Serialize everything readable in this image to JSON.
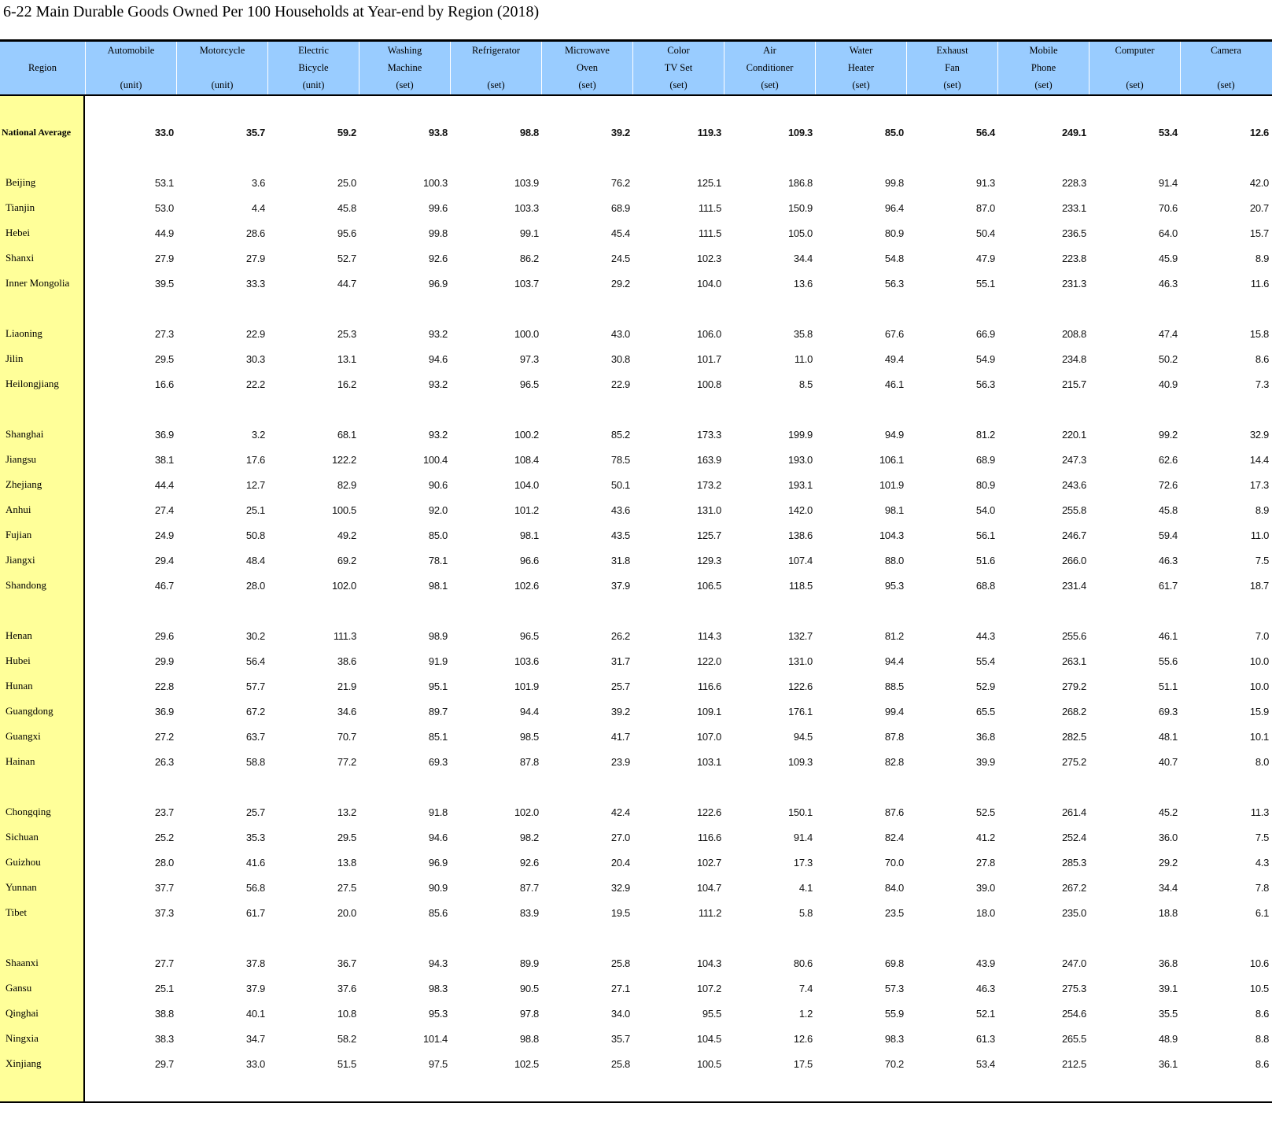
{
  "title": "6-22  Main Durable Goods Owned Per 100 Households at Year-end by Region (2018)",
  "header": {
    "region_label": "Region",
    "columns": [
      {
        "lines": [
          "Automobile",
          ""
        ],
        "unit": "(unit)"
      },
      {
        "lines": [
          "Motorcycle",
          ""
        ],
        "unit": "(unit)"
      },
      {
        "lines": [
          "Electric",
          "Bicycle"
        ],
        "unit": "(unit)"
      },
      {
        "lines": [
          "Washing",
          "Machine"
        ],
        "unit": "(set)"
      },
      {
        "lines": [
          "Refrigerator",
          ""
        ],
        "unit": "(set)"
      },
      {
        "lines": [
          "Microwave",
          "Oven"
        ],
        "unit": "(set)"
      },
      {
        "lines": [
          "Color",
          "TV Set"
        ],
        "unit": "(set)"
      },
      {
        "lines": [
          "Air",
          "Conditioner"
        ],
        "unit": "(set)"
      },
      {
        "lines": [
          "Water",
          "Heater"
        ],
        "unit": "(set)"
      },
      {
        "lines": [
          "Exhaust",
          "Fan"
        ],
        "unit": "(set)"
      },
      {
        "lines": [
          "Mobile",
          "Phone"
        ],
        "unit": "(set)"
      },
      {
        "lines": [
          "Computer",
          ""
        ],
        "unit": "(set)"
      },
      {
        "lines": [
          "Camera",
          ""
        ],
        "unit": "(set)"
      }
    ]
  },
  "colors": {
    "header_bg": "#99ccff",
    "region_bg": "#ffff99"
  },
  "national_average": {
    "region": "National Average",
    "values": [
      "33.0",
      "35.7",
      "59.2",
      "93.8",
      "98.8",
      "39.2",
      "119.3",
      "109.3",
      "85.0",
      "56.4",
      "249.1",
      "53.4",
      "12.6"
    ]
  },
  "groups": [
    [
      {
        "region": "Beijing",
        "values": [
          "53.1",
          "3.6",
          "25.0",
          "100.3",
          "103.9",
          "76.2",
          "125.1",
          "186.8",
          "99.8",
          "91.3",
          "228.3",
          "91.4",
          "42.0"
        ]
      },
      {
        "region": "Tianjin",
        "values": [
          "53.0",
          "4.4",
          "45.8",
          "99.6",
          "103.3",
          "68.9",
          "111.5",
          "150.9",
          "96.4",
          "87.0",
          "233.1",
          "70.6",
          "20.7"
        ]
      },
      {
        "region": "Hebei",
        "values": [
          "44.9",
          "28.6",
          "95.6",
          "99.8",
          "99.1",
          "45.4",
          "111.5",
          "105.0",
          "80.9",
          "50.4",
          "236.5",
          "64.0",
          "15.7"
        ]
      },
      {
        "region": "Shanxi",
        "values": [
          "27.9",
          "27.9",
          "52.7",
          "92.6",
          "86.2",
          "24.5",
          "102.3",
          "34.4",
          "54.8",
          "47.9",
          "223.8",
          "45.9",
          "8.9"
        ]
      },
      {
        "region": "Inner Mongolia",
        "values": [
          "39.5",
          "33.3",
          "44.7",
          "96.9",
          "103.7",
          "29.2",
          "104.0",
          "13.6",
          "56.3",
          "55.1",
          "231.3",
          "46.3",
          "11.6"
        ]
      }
    ],
    [
      {
        "region": "Liaoning",
        "values": [
          "27.3",
          "22.9",
          "25.3",
          "93.2",
          "100.0",
          "43.0",
          "106.0",
          "35.8",
          "67.6",
          "66.9",
          "208.8",
          "47.4",
          "15.8"
        ]
      },
      {
        "region": "Jilin",
        "values": [
          "29.5",
          "30.3",
          "13.1",
          "94.6",
          "97.3",
          "30.8",
          "101.7",
          "11.0",
          "49.4",
          "54.9",
          "234.8",
          "50.2",
          "8.6"
        ]
      },
      {
        "region": "Heilongjiang",
        "values": [
          "16.6",
          "22.2",
          "16.2",
          "93.2",
          "96.5",
          "22.9",
          "100.8",
          "8.5",
          "46.1",
          "56.3",
          "215.7",
          "40.9",
          "7.3"
        ]
      }
    ],
    [
      {
        "region": "Shanghai",
        "values": [
          "36.9",
          "3.2",
          "68.1",
          "93.2",
          "100.2",
          "85.2",
          "173.3",
          "199.9",
          "94.9",
          "81.2",
          "220.1",
          "99.2",
          "32.9"
        ]
      },
      {
        "region": "Jiangsu",
        "values": [
          "38.1",
          "17.6",
          "122.2",
          "100.4",
          "108.4",
          "78.5",
          "163.9",
          "193.0",
          "106.1",
          "68.9",
          "247.3",
          "62.6",
          "14.4"
        ]
      },
      {
        "region": "Zhejiang",
        "values": [
          "44.4",
          "12.7",
          "82.9",
          "90.6",
          "104.0",
          "50.1",
          "173.2",
          "193.1",
          "101.9",
          "80.9",
          "243.6",
          "72.6",
          "17.3"
        ]
      },
      {
        "region": "Anhui",
        "values": [
          "27.4",
          "25.1",
          "100.5",
          "92.0",
          "101.2",
          "43.6",
          "131.0",
          "142.0",
          "98.1",
          "54.0",
          "255.8",
          "45.8",
          "8.9"
        ]
      },
      {
        "region": "Fujian",
        "values": [
          "24.9",
          "50.8",
          "49.2",
          "85.0",
          "98.1",
          "43.5",
          "125.7",
          "138.6",
          "104.3",
          "56.1",
          "246.7",
          "59.4",
          "11.0"
        ]
      },
      {
        "region": "Jiangxi",
        "values": [
          "29.4",
          "48.4",
          "69.2",
          "78.1",
          "96.6",
          "31.8",
          "129.3",
          "107.4",
          "88.0",
          "51.6",
          "266.0",
          "46.3",
          "7.5"
        ]
      },
      {
        "region": "Shandong",
        "values": [
          "46.7",
          "28.0",
          "102.0",
          "98.1",
          "102.6",
          "37.9",
          "106.5",
          "118.5",
          "95.3",
          "68.8",
          "231.4",
          "61.7",
          "18.7"
        ]
      }
    ],
    [
      {
        "region": "Henan",
        "values": [
          "29.6",
          "30.2",
          "111.3",
          "98.9",
          "96.5",
          "26.2",
          "114.3",
          "132.7",
          "81.2",
          "44.3",
          "255.6",
          "46.1",
          "7.0"
        ]
      },
      {
        "region": "Hubei",
        "values": [
          "29.9",
          "56.4",
          "38.6",
          "91.9",
          "103.6",
          "31.7",
          "122.0",
          "131.0",
          "94.4",
          "55.4",
          "263.1",
          "55.6",
          "10.0"
        ]
      },
      {
        "region": "Hunan",
        "values": [
          "22.8",
          "57.7",
          "21.9",
          "95.1",
          "101.9",
          "25.7",
          "116.6",
          "122.6",
          "88.5",
          "52.9",
          "279.2",
          "51.1",
          "10.0"
        ]
      },
      {
        "region": "Guangdong",
        "values": [
          "36.9",
          "67.2",
          "34.6",
          "89.7",
          "94.4",
          "39.2",
          "109.1",
          "176.1",
          "99.4",
          "65.5",
          "268.2",
          "69.3",
          "15.9"
        ]
      },
      {
        "region": "Guangxi",
        "values": [
          "27.2",
          "63.7",
          "70.7",
          "85.1",
          "98.5",
          "41.7",
          "107.0",
          "94.5",
          "87.8",
          "36.8",
          "282.5",
          "48.1",
          "10.1"
        ]
      },
      {
        "region": "Hainan",
        "values": [
          "26.3",
          "58.8",
          "77.2",
          "69.3",
          "87.8",
          "23.9",
          "103.1",
          "109.3",
          "82.8",
          "39.9",
          "275.2",
          "40.7",
          "8.0"
        ]
      }
    ],
    [
      {
        "region": "Chongqing",
        "values": [
          "23.7",
          "25.7",
          "13.2",
          "91.8",
          "102.0",
          "42.4",
          "122.6",
          "150.1",
          "87.6",
          "52.5",
          "261.4",
          "45.2",
          "11.3"
        ]
      },
      {
        "region": "Sichuan",
        "values": [
          "25.2",
          "35.3",
          "29.5",
          "94.6",
          "98.2",
          "27.0",
          "116.6",
          "91.4",
          "82.4",
          "41.2",
          "252.4",
          "36.0",
          "7.5"
        ]
      },
      {
        "region": "Guizhou",
        "values": [
          "28.0",
          "41.6",
          "13.8",
          "96.9",
          "92.6",
          "20.4",
          "102.7",
          "17.3",
          "70.0",
          "27.8",
          "285.3",
          "29.2",
          "4.3"
        ]
      },
      {
        "region": "Yunnan",
        "values": [
          "37.7",
          "56.8",
          "27.5",
          "90.9",
          "87.7",
          "32.9",
          "104.7",
          "4.1",
          "84.0",
          "39.0",
          "267.2",
          "34.4",
          "7.8"
        ]
      },
      {
        "region": "Tibet",
        "values": [
          "37.3",
          "61.7",
          "20.0",
          "85.6",
          "83.9",
          "19.5",
          "111.2",
          "5.8",
          "23.5",
          "18.0",
          "235.0",
          "18.8",
          "6.1"
        ]
      }
    ],
    [
      {
        "region": "Shaanxi",
        "values": [
          "27.7",
          "37.8",
          "36.7",
          "94.3",
          "89.9",
          "25.8",
          "104.3",
          "80.6",
          "69.8",
          "43.9",
          "247.0",
          "36.8",
          "10.6"
        ]
      },
      {
        "region": "Gansu",
        "values": [
          "25.1",
          "37.9",
          "37.6",
          "98.3",
          "90.5",
          "27.1",
          "107.2",
          "7.4",
          "57.3",
          "46.3",
          "275.3",
          "39.1",
          "10.5"
        ]
      },
      {
        "region": "Qinghai",
        "values": [
          "38.8",
          "40.1",
          "10.8",
          "95.3",
          "97.8",
          "34.0",
          "95.5",
          "1.2",
          "55.9",
          "52.1",
          "254.6",
          "35.5",
          "8.6"
        ]
      },
      {
        "region": "Ningxia",
        "values": [
          "38.3",
          "34.7",
          "58.2",
          "101.4",
          "98.8",
          "35.7",
          "104.5",
          "12.6",
          "98.3",
          "61.3",
          "265.5",
          "48.9",
          "8.8"
        ]
      },
      {
        "region": "Xinjiang",
        "values": [
          "29.7",
          "33.0",
          "51.5",
          "97.5",
          "102.5",
          "25.8",
          "100.5",
          "17.5",
          "70.2",
          "53.4",
          "212.5",
          "36.1",
          "8.6"
        ]
      }
    ]
  ]
}
